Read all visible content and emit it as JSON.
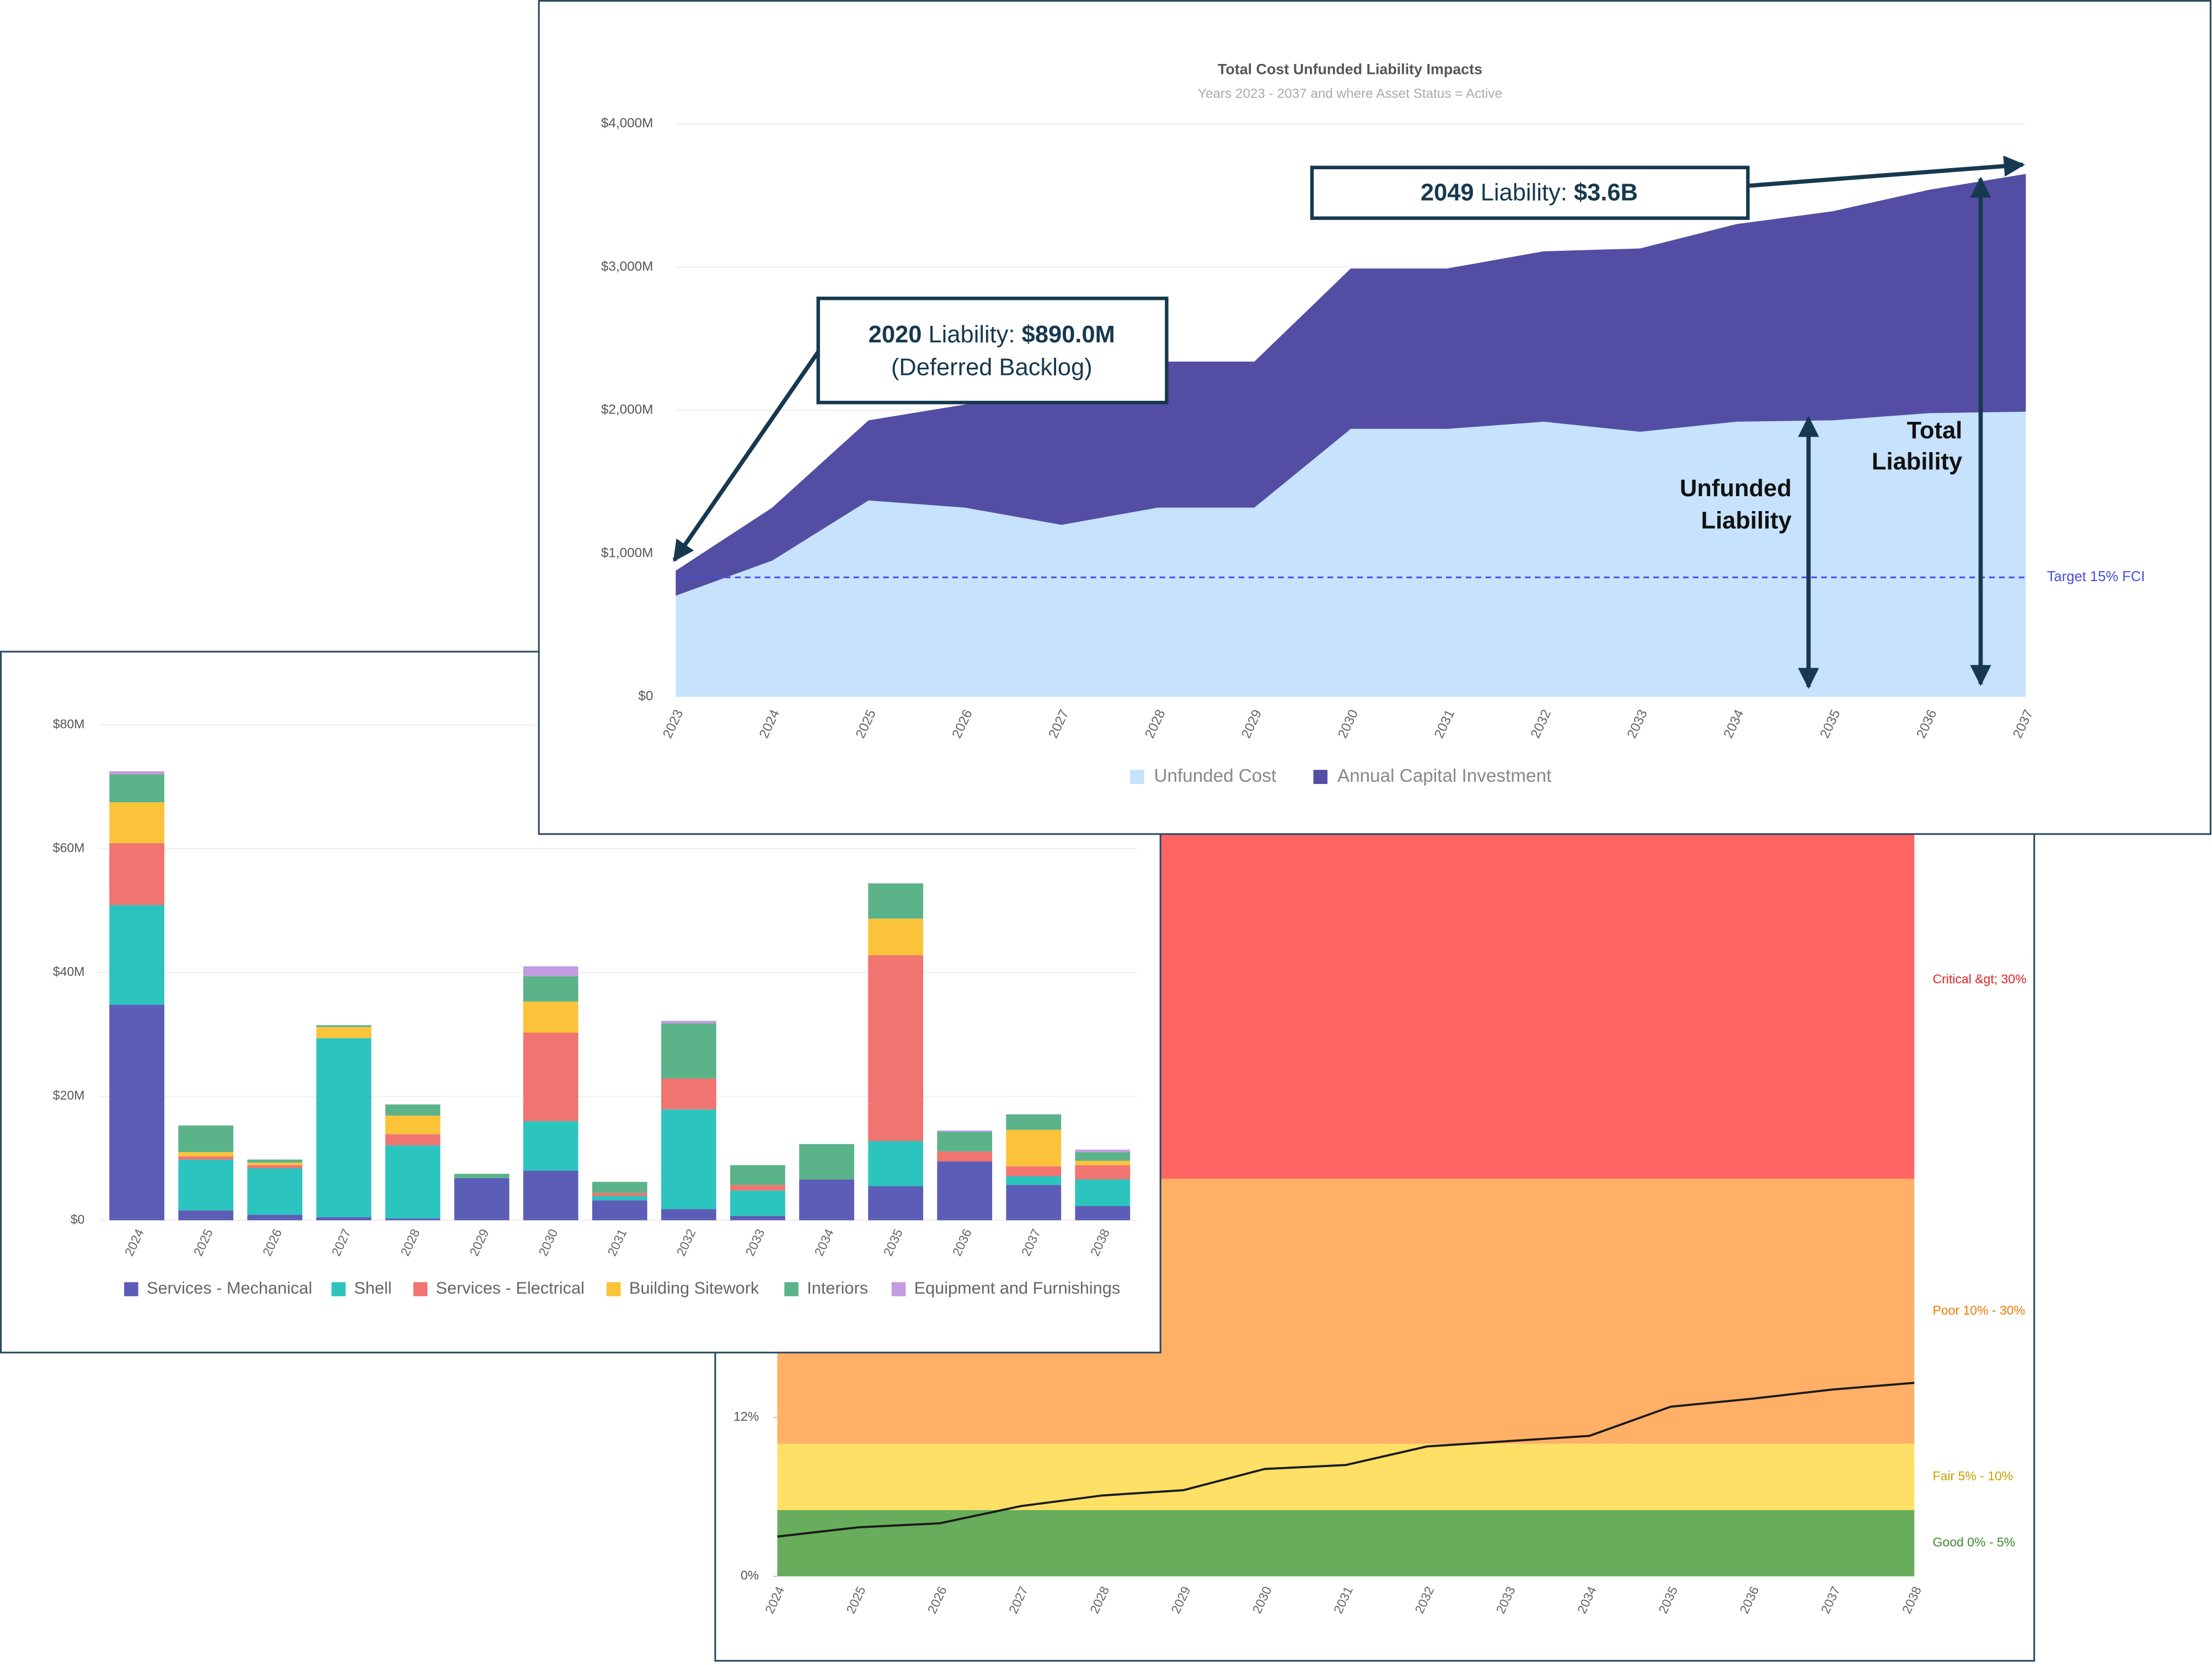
{
  "chart_data": [
    {
      "type": "area",
      "title": "Total Cost Unfunded Liability Impacts",
      "subtitle": "Years 2023 - 2037 and where Asset Status = Active",
      "categories": [
        "2023",
        "2024",
        "2025",
        "2026",
        "2027",
        "2028",
        "2029",
        "2030",
        "2031",
        "2032",
        "2033",
        "2034",
        "2035",
        "2036",
        "2037"
      ],
      "series": [
        {
          "name": "Unfunded Cost",
          "color": "#c6e2fc",
          "values": [
            705,
            950,
            1370,
            1320,
            1200,
            1320,
            1320,
            1870,
            1870,
            1920,
            1850,
            1920,
            1930,
            1980,
            1990
          ]
        },
        {
          "name": "Annual Capital Investment",
          "color": "#534ea3",
          "values": [
            175,
            370,
            560,
            720,
            1000,
            1020,
            1020,
            1120,
            1120,
            1190,
            1280,
            1380,
            1460,
            1560,
            1660
          ]
        }
      ],
      "stacked": true,
      "ylim": [
        0,
        4000
      ],
      "yticks": [
        {
          "value": 0,
          "label": "$0"
        },
        {
          "value": 1000,
          "label": "$1,000M"
        },
        {
          "value": 2000,
          "label": "$2,000M"
        },
        {
          "value": 3000,
          "label": "$3,000M"
        },
        {
          "value": 4000,
          "label": "$4,000M"
        }
      ],
      "grid": true,
      "target": {
        "label": "Target 15% FCI",
        "value": 833,
        "color": "#4a4ae0"
      },
      "annotations": [
        {
          "parts": [
            "2049",
            " Liability: ",
            "$3.6B"
          ]
        },
        {
          "parts": [
            "2020",
            " Liability: ",
            "$890.0M"
          ],
          "note": "(Deferred Backlog)"
        },
        {
          "lines": [
            "Unfunded",
            "Liability"
          ]
        },
        {
          "lines": [
            "Total",
            "Liability"
          ]
        }
      ]
    },
    {
      "type": "stacked_bar",
      "categories": [
        "2024",
        "2025",
        "2026",
        "2027",
        "2028",
        "2029",
        "2030",
        "2031",
        "2032",
        "2033",
        "2034",
        "2035",
        "2036",
        "2037",
        "2038"
      ],
      "series": [
        {
          "name": "Services - Mechanical",
          "color": "#5b5db6",
          "values": [
            34.8,
            1.6,
            0.9,
            0.5,
            0.3,
            6.8,
            8,
            3.2,
            1.8,
            0.7,
            6.6,
            5.5,
            9.5,
            5.7,
            2.3
          ]
        },
        {
          "name": "Shell",
          "color": "#2cc4bf",
          "values": [
            16.1,
            8.2,
            7.5,
            28.9,
            11.8,
            0,
            8,
            0.7,
            16.1,
            4.1,
            0,
            7.3,
            0,
            1.4,
            4.3
          ]
        },
        {
          "name": "Services - Electrical",
          "color": "#f07470",
          "values": [
            10,
            0.5,
            0.5,
            0,
            1.8,
            0,
            14.3,
            0.5,
            5,
            0.9,
            0,
            30,
            1.6,
            1.6,
            2.3
          ]
        },
        {
          "name": "Building Sitework",
          "color": "#fbc33a",
          "values": [
            6.6,
            0.7,
            0.4,
            1.8,
            3,
            0,
            5,
            0,
            0,
            0,
            0,
            5.9,
            0,
            5.9,
            0.7
          ]
        },
        {
          "name": "Interiors",
          "color": "#5bb38a",
          "values": [
            4.5,
            4.3,
            0.5,
            0.3,
            1.8,
            0.7,
            4.1,
            1.8,
            8.9,
            3.2,
            5.7,
            5.7,
            3.2,
            2.5,
            1.4
          ]
        },
        {
          "name": "Equipment and Furnishings",
          "color": "#c29be0",
          "values": [
            0.5,
            0,
            0,
            0,
            0,
            0,
            1.6,
            0,
            0.4,
            0,
            0,
            0,
            0.2,
            0,
            0.4
          ]
        }
      ],
      "ylim": [
        0,
        80
      ],
      "yticks": [
        {
          "value": 0,
          "label": "$0"
        },
        {
          "value": 20,
          "label": "$20M"
        },
        {
          "value": 40,
          "label": "$40M"
        },
        {
          "value": 60,
          "label": "$60M"
        },
        {
          "value": 80,
          "label": "$80M"
        }
      ],
      "grid": true
    },
    {
      "type": "line",
      "categories": [
        "2024",
        "2025",
        "2026",
        "2027",
        "2028",
        "2029",
        "2030",
        "2031",
        "2032",
        "2033",
        "2034",
        "2035",
        "2036",
        "2037",
        "2038"
      ],
      "values": [
        3.0,
        3.7,
        4.0,
        5.3,
        6.1,
        6.5,
        8.1,
        8.4,
        9.8,
        10.2,
        10.6,
        12.8,
        13.4,
        14.1,
        14.6
      ],
      "color": "#1a1a1a",
      "ylim": [
        0,
        60
      ],
      "yticks": [
        {
          "value": 0,
          "label": "0%"
        },
        {
          "value": 12,
          "label": "12%"
        }
      ],
      "bands": [
        {
          "label": "Good 0% - 5%",
          "from": 0,
          "to": 5,
          "color": "#67ad5b",
          "text_color": "#3a8a2e"
        },
        {
          "label": "Fair 5% - 10%",
          "from": 5,
          "to": 10,
          "color": "#ffe066",
          "text_color": "#c9a000"
        },
        {
          "label": "Poor 10% - 30%",
          "from": 10,
          "to": 30,
          "color": "#ffb066",
          "text_color": "#ee7a00"
        },
        {
          "label": "Critical &gt; 30%",
          "from": 30,
          "to": 60,
          "color": "#ff6563",
          "text_color": "#e02020"
        }
      ]
    }
  ]
}
